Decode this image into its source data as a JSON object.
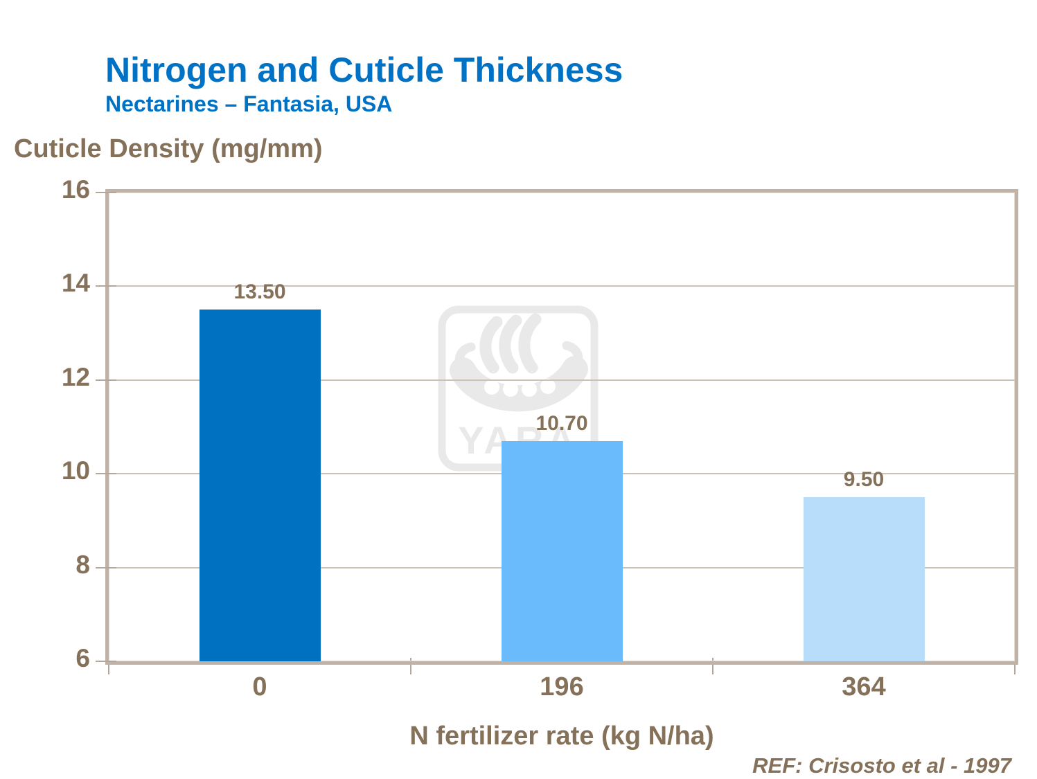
{
  "slide": {
    "title": "Nitrogen and Cuticle Thickness",
    "subtitle": "Nectarines – Fantasia, USA",
    "reference": "REF: Crisosto et al - 1997",
    "watermark_text": "YARA"
  },
  "chart_data": {
    "type": "bar",
    "title": "Nitrogen and Cuticle Thickness",
    "subtitle": "Nectarines – Fantasia, USA",
    "categories": [
      "0",
      "196",
      "364"
    ],
    "values": [
      13.5,
      10.7,
      9.5
    ],
    "value_labels": [
      "13.50",
      "10.70",
      "9.50"
    ],
    "bar_colors": [
      "#0070C0",
      "#69BBFC",
      "#B8DDFB"
    ],
    "xlabel": "N fertilizer rate (kg N/ha)",
    "ylabel": "Cuticle Density (mg/mm)",
    "ylim": [
      6,
      16
    ],
    "yticks": [
      6,
      8,
      10,
      12,
      14,
      16
    ],
    "grid": true,
    "legend": false
  },
  "colors": {
    "title_blue": "#0072C6",
    "text_brown": "#857159",
    "axis_frame_tan": "#BFB3A8",
    "gridline_tan": "#CCC2B6",
    "watermark_gray": "#E9E9E9",
    "background": "#FFFFFF"
  }
}
